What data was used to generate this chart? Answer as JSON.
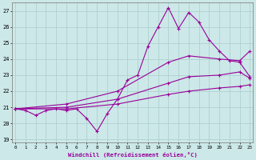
{
  "xlabel": "Windchill (Refroidissement éolien,°C)",
  "x_ticks": [
    0,
    1,
    2,
    3,
    4,
    5,
    6,
    7,
    8,
    9,
    10,
    11,
    12,
    13,
    14,
    15,
    16,
    17,
    18,
    19,
    20,
    21,
    22,
    23
  ],
  "ylim": [
    18.8,
    27.5
  ],
  "yticks": [
    19,
    20,
    21,
    22,
    23,
    24,
    25,
    26,
    27
  ],
  "line_color": "#990099",
  "bg_color": "#cce8e8",
  "grid_color": "#aacccc",
  "jagged_x": [
    0,
    1,
    2,
    3,
    4,
    5,
    6,
    7,
    8,
    9,
    10,
    11,
    12,
    13,
    14,
    15,
    16,
    17,
    18,
    19,
    20,
    21,
    22,
    23
  ],
  "jagged_y": [
    20.9,
    20.8,
    20.5,
    20.8,
    20.9,
    20.8,
    20.9,
    20.3,
    19.5,
    20.6,
    21.5,
    22.7,
    23.0,
    24.8,
    26.0,
    27.2,
    25.9,
    26.9,
    26.3,
    25.2,
    24.5,
    23.9,
    23.8,
    22.9
  ],
  "line2_x": [
    0,
    23
  ],
  "line2_y": [
    20.9,
    24.5
  ],
  "line3_x": [
    0,
    23
  ],
  "line3_y": [
    20.9,
    22.8
  ],
  "line4_x": [
    0,
    23
  ],
  "line4_y": [
    20.9,
    22.4
  ],
  "marker_x2": [
    0,
    5,
    10,
    15,
    17,
    20,
    22,
    23
  ],
  "marker_y2": [
    20.9,
    21.2,
    22.0,
    23.8,
    24.2,
    24.0,
    23.9,
    24.5
  ],
  "marker_x3": [
    0,
    5,
    10,
    15,
    17,
    20,
    22,
    23
  ],
  "marker_y3": [
    20.9,
    21.0,
    21.5,
    22.5,
    22.9,
    23.0,
    23.2,
    22.8
  ],
  "marker_x4": [
    0,
    5,
    10,
    15,
    17,
    20,
    22,
    23
  ],
  "marker_y4": [
    20.9,
    20.9,
    21.2,
    21.8,
    22.0,
    22.2,
    22.3,
    22.4
  ]
}
